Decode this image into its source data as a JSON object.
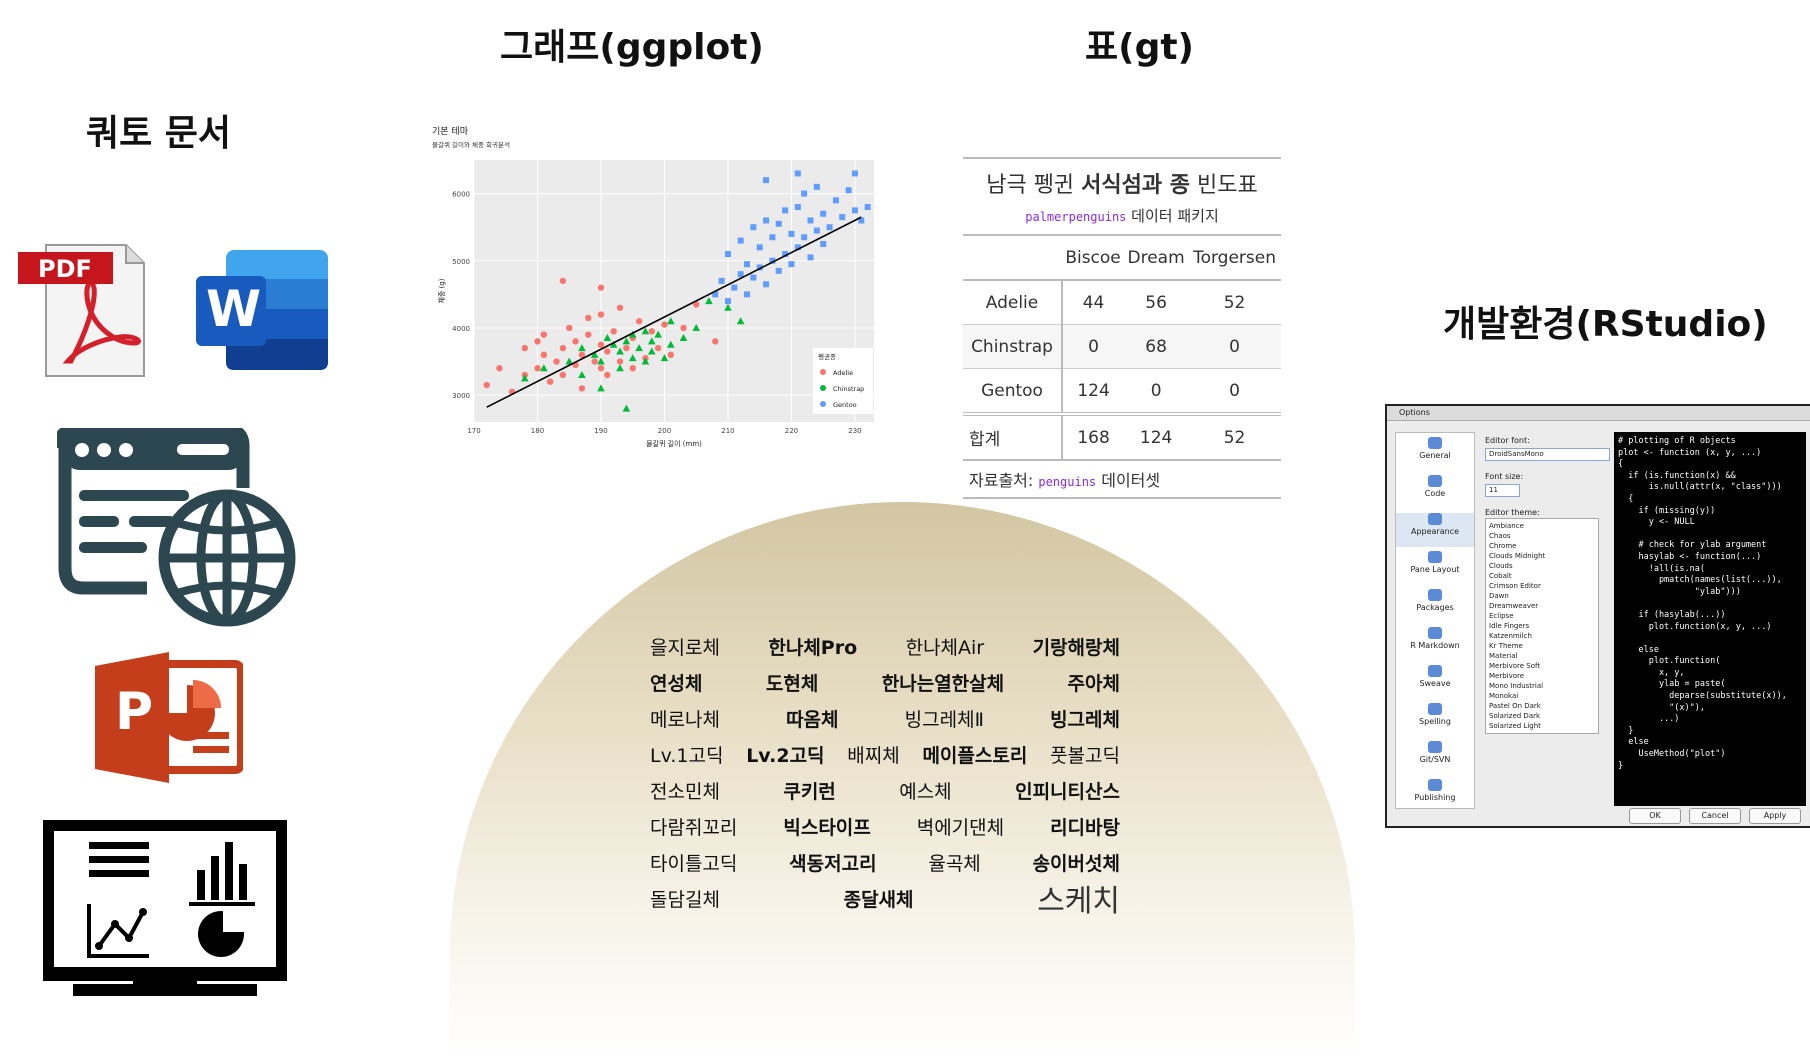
{
  "headings": {
    "quarto": "쿼토 문서",
    "graph": "그래프(ggplot)",
    "table": "표(gt)",
    "ide": "개발환경(RStudio)"
  },
  "icons": {
    "pdf": {
      "name": "pdf-icon",
      "label": "PDF",
      "color": "#c4161c"
    },
    "word": {
      "name": "word-icon",
      "label": "W",
      "color": "#185abd"
    },
    "web": {
      "name": "web-page-icon",
      "color": "#2d4750"
    },
    "ppt": {
      "name": "powerpoint-icon",
      "label": "P",
      "color": "#c43e1c"
    },
    "dashboard": {
      "name": "dashboard-icon",
      "color": "#000000"
    }
  },
  "chart_data": {
    "type": "scatter",
    "title": "기본 테마",
    "subtitle": "물갈퀴 길이와 체중 회귀분석",
    "xlabel": "물갈퀴 길이 (mm)",
    "ylabel": "체중 (g)",
    "xlim": [
      170,
      233
    ],
    "ylim": [
      2600,
      6500
    ],
    "xticks": [
      170,
      180,
      190,
      200,
      210,
      220,
      230
    ],
    "yticks": [
      3000,
      4000,
      5000,
      6000
    ],
    "grid": true,
    "legend": {
      "title": "펭귄종",
      "position": "bottom-right"
    },
    "series": [
      {
        "name": "Adelie",
        "color": "#f8766d",
        "marker": "circle",
        "points": [
          [
            172,
            3150
          ],
          [
            174,
            3400
          ],
          [
            176,
            3050
          ],
          [
            178,
            3300
          ],
          [
            178,
            3700
          ],
          [
            180,
            3800
          ],
          [
            180,
            3400
          ],
          [
            181,
            3600
          ],
          [
            181,
            3900
          ],
          [
            182,
            3200
          ],
          [
            183,
            3500
          ],
          [
            184,
            3700
          ],
          [
            184,
            3300
          ],
          [
            185,
            4000
          ],
          [
            186,
            3450
          ],
          [
            186,
            3800
          ],
          [
            187,
            3600
          ],
          [
            187,
            3100
          ],
          [
            188,
            3900
          ],
          [
            188,
            4150
          ],
          [
            189,
            3500
          ],
          [
            190,
            3400
          ],
          [
            190,
            3750
          ],
          [
            190,
            4200
          ],
          [
            191,
            3300
          ],
          [
            191,
            3650
          ],
          [
            192,
            3950
          ],
          [
            193,
            3500
          ],
          [
            193,
            4300
          ],
          [
            194,
            3700
          ],
          [
            195,
            3850
          ],
          [
            195,
            3400
          ],
          [
            196,
            4100
          ],
          [
            197,
            3550
          ],
          [
            198,
            3950
          ],
          [
            199,
            3700
          ],
          [
            200,
            4050
          ],
          [
            201,
            3600
          ],
          [
            203,
            4000
          ],
          [
            205,
            4350
          ],
          [
            208,
            3800
          ],
          [
            184,
            4700
          ],
          [
            190,
            4600
          ]
        ]
      },
      {
        "name": "Chinstrap",
        "color": "#00ba38",
        "marker": "triangle",
        "points": [
          [
            178,
            3250
          ],
          [
            181,
            3400
          ],
          [
            185,
            3500
          ],
          [
            187,
            3300
          ],
          [
            187,
            3700
          ],
          [
            189,
            3600
          ],
          [
            190,
            3500
          ],
          [
            191,
            3850
          ],
          [
            192,
            3750
          ],
          [
            193,
            3400
          ],
          [
            193,
            3650
          ],
          [
            194,
            3800
          ],
          [
            195,
            3550
          ],
          [
            195,
            3900
          ],
          [
            196,
            3700
          ],
          [
            197,
            3500
          ],
          [
            197,
            3950
          ],
          [
            198,
            3650
          ],
          [
            198,
            3800
          ],
          [
            199,
            3900
          ],
          [
            200,
            3550
          ],
          [
            201,
            3750
          ],
          [
            201,
            4100
          ],
          [
            203,
            3850
          ],
          [
            205,
            4000
          ],
          [
            207,
            4400
          ],
          [
            210,
            4300
          ],
          [
            212,
            4100
          ],
          [
            190,
            3100
          ],
          [
            194,
            2800
          ]
        ]
      },
      {
        "name": "Gentoo",
        "color": "#619cff",
        "marker": "square",
        "points": [
          [
            208,
            4500
          ],
          [
            209,
            4700
          ],
          [
            210,
            4400
          ],
          [
            210,
            5100
          ],
          [
            211,
            4600
          ],
          [
            212,
            4800
          ],
          [
            212,
            5300
          ],
          [
            213,
            4500
          ],
          [
            213,
            4950
          ],
          [
            214,
            4750
          ],
          [
            214,
            5500
          ],
          [
            215,
            4900
          ],
          [
            215,
            5200
          ],
          [
            216,
            4650
          ],
          [
            216,
            5600
          ],
          [
            217,
            5000
          ],
          [
            217,
            5350
          ],
          [
            218,
            4850
          ],
          [
            218,
            5550
          ],
          [
            219,
            5100
          ],
          [
            219,
            5750
          ],
          [
            220,
            4950
          ],
          [
            220,
            5400
          ],
          [
            221,
            5200
          ],
          [
            221,
            5800
          ],
          [
            222,
            5350
          ],
          [
            222,
            6000
          ],
          [
            223,
            5050
          ],
          [
            223,
            5600
          ],
          [
            224,
            5450
          ],
          [
            224,
            6100
          ],
          [
            225,
            5250
          ],
          [
            225,
            5700
          ],
          [
            226,
            5500
          ],
          [
            227,
            5900
          ],
          [
            228,
            5650
          ],
          [
            229,
            6050
          ],
          [
            230,
            5750
          ],
          [
            230,
            6300
          ],
          [
            231,
            5600
          ],
          [
            232,
            5800
          ],
          [
            216,
            6200
          ],
          [
            221,
            6300
          ]
        ]
      }
    ],
    "regression_line": [
      [
        172,
        2820
      ],
      [
        231,
        5650
      ]
    ]
  },
  "gt_table": {
    "title_parts": [
      "남극 펭귄 ",
      "서식섬과 종",
      " 빈도표"
    ],
    "subtitle_code": "palmerpenguins",
    "subtitle_text": " 데이터 패키지",
    "columns": [
      "",
      "Biscoe",
      "Dream",
      "Torgersen"
    ],
    "rows": [
      [
        "Adelie",
        "44",
        "56",
        "52"
      ],
      [
        "Chinstrap",
        "0",
        "68",
        "0"
      ],
      [
        "Gentoo",
        "124",
        "0",
        "0"
      ]
    ],
    "total": [
      "합계",
      "168",
      "124",
      "52"
    ],
    "source_label": "자료출처: ",
    "source_code": "penguins",
    "source_suffix": " 데이터셋"
  },
  "fonts": [
    [
      "을지로체",
      "한나체Pro",
      "한나체Air",
      "기랑해랑체"
    ],
    [
      "연성체",
      "도현체",
      "한나는열한살체",
      "주아체"
    ],
    [
      "메로나체",
      "따옴체",
      "빙그레체Ⅱ",
      "빙그레체"
    ],
    [
      "Lv.1고딕",
      "Lv.2고딕",
      "배찌체",
      "메이플스토리",
      "풋볼고딕"
    ],
    [
      "전소민체",
      "쿠키런",
      "예스체",
      "인피니티산스"
    ],
    [
      "다람쥐꼬리",
      "빅스타이프",
      "벽에기댄체",
      "리디바탕"
    ],
    [
      "타이틀고딕",
      "색동저고리",
      "율곡체",
      "송이버섯체"
    ],
    [
      "돌담길체",
      "종달새체",
      "스케치"
    ]
  ],
  "rstudio": {
    "window_title": "Options",
    "sidebar": [
      "General",
      "Code",
      "Appearance",
      "Pane Layout",
      "Packages",
      "R Markdown",
      "Sweave",
      "Spelling",
      "Git/SVN",
      "Publishing"
    ],
    "selected": "Appearance",
    "editor_font_label": "Editor font:",
    "editor_font_value": "DroidSansMono",
    "font_size_label": "Font size:",
    "font_size_value": "11",
    "editor_theme_label": "Editor theme:",
    "themes": [
      "Ambiance",
      "Chaos",
      "Chrome",
      "Clouds Midnight",
      "Clouds",
      "Cobalt",
      "Crimson Editor",
      "Dawn",
      "Dreamweaver",
      "Eclipse",
      "Idle Fingers",
      "Katzenmilch",
      "Kr Theme",
      "Material",
      "Merbivore Soft",
      "Merbivore",
      "Mono Industrial",
      "Monokai",
      "Pastel On Dark",
      "Solarized Dark",
      "Solarized Light"
    ],
    "code": "# plotting of R objects\nplot <- function (x, y, ...)\n{\n  if (is.function(x) &&\n      is.null(attr(x, \"class\")))\n  {\n    if (missing(y))\n      y <- NULL\n\n    # check for ylab argument\n    hasylab <- function(...)\n      !all(is.na(\n        pmatch(names(list(...)),\n               \"ylab\")))\n\n    if (hasylab(...))\n      plot.function(x, y, ...)\n\n    else\n      plot.function(\n        x, y,\n        ylab = paste(\n          deparse(substitute(x)),\n          \"(x)\"),\n        ...)\n  }\n  else\n    UseMethod(\"plot\")\n}",
    "buttons": [
      "OK",
      "Cancel",
      "Apply"
    ]
  }
}
